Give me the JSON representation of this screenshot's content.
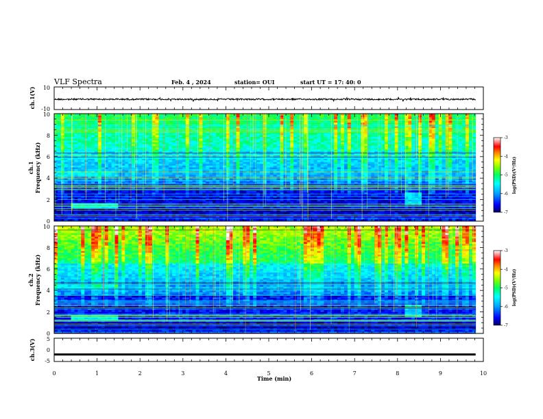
{
  "header": {
    "title": "VLF Spectra",
    "date": "Feb. 4  , 2024",
    "station": "station= OUI",
    "start": "start  UT  =   17: 40: 0"
  },
  "chart_data": [
    {
      "type": "line",
      "panel": "waveform-ch1",
      "ylabel": "ch.1(V)",
      "ylim": [
        -10,
        10
      ],
      "yticks": [
        "10",
        "-10"
      ],
      "xlim": [
        0,
        10
      ],
      "series": [
        {
          "values_description_free": true,
          "mean": 0.0,
          "amplitude": 1.0,
          "end_time": 9.82
        }
      ]
    },
    {
      "type": "heatmap",
      "panel": "spectrogram-ch1",
      "ylabel": "ch.1\nFrequency (kHz)",
      "ylabel_line1": "ch.1",
      "ylabel_line2": "Frequency (kHz)",
      "ylim": [
        0,
        10
      ],
      "yticks": [
        "0",
        "2",
        "4",
        "6",
        "8",
        "10"
      ],
      "xlim": [
        0,
        10
      ],
      "data_end_time": 9.82,
      "colorbar": {
        "label": "log(PSD)(V²/Hz)",
        "range": [
          -7,
          -3
        ],
        "ticks": [
          "-3",
          "-4",
          "-5",
          "-6",
          "-7"
        ],
        "colors": [
          "#000080",
          "#0000ff",
          "#00b0ff",
          "#00ffff",
          "#00ff60",
          "#80ff00",
          "#ffff00",
          "#ff8000",
          "#ff0000",
          "#ffffff"
        ]
      }
    },
    {
      "type": "heatmap",
      "panel": "spectrogram-ch2",
      "ylabel": "ch.2\nFrequency (kHz)",
      "ylabel_line1": "ch.2",
      "ylabel_line2": "Frequency (kHz)",
      "ylim": [
        0,
        10
      ],
      "yticks": [
        "0",
        "2",
        "4",
        "6",
        "8",
        "10"
      ],
      "xlim": [
        0,
        10
      ],
      "data_end_time": 9.82,
      "colorbar": {
        "label": "log(PSD)(V²/Hz)",
        "range": [
          -7,
          -3
        ],
        "ticks": [
          "-3",
          "-4",
          "-5",
          "-6",
          "-7"
        ],
        "colors": [
          "#000080",
          "#0000ff",
          "#00b0ff",
          "#00ffff",
          "#00ff60",
          "#80ff00",
          "#ffff00",
          "#ff8000",
          "#ff0000",
          "#ffffff"
        ]
      }
    },
    {
      "type": "line",
      "panel": "waveform-ch3",
      "ylabel": "ch.3(V)",
      "ylim": [
        -5,
        5
      ],
      "yticks": [
        "5",
        "0",
        "-5"
      ],
      "xlim": [
        0,
        10
      ],
      "xlabel": "Time  (min)",
      "xticks": [
        "0",
        "1",
        "2",
        "3",
        "4",
        "5",
        "6",
        "7",
        "8",
        "9",
        "10"
      ],
      "series": [
        {
          "mean": -2.0,
          "amplitude": 0.3,
          "end_time": 9.82
        }
      ]
    }
  ]
}
